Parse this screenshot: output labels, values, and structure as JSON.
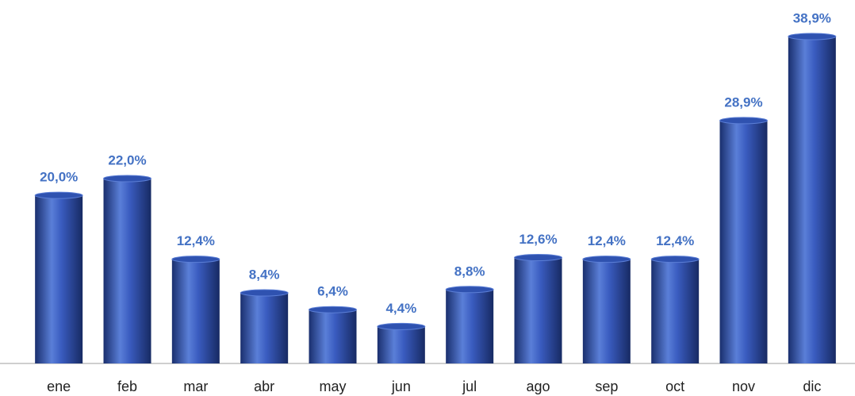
{
  "chart_data": {
    "type": "bar",
    "categories": [
      "ene",
      "feb",
      "mar",
      "abr",
      "may",
      "jun",
      "jul",
      "ago",
      "sep",
      "oct",
      "nov",
      "dic"
    ],
    "values": [
      20.0,
      22.0,
      12.4,
      8.4,
      6.4,
      4.4,
      8.8,
      12.6,
      12.4,
      12.4,
      28.9,
      38.9
    ],
    "value_labels": [
      "20,0%",
      "22,0%",
      "12,4%",
      "8,4%",
      "6,4%",
      "4,4%",
      "8,8%",
      "12,6%",
      "12,4%",
      "12,4%",
      "28,9%",
      "38,9%"
    ],
    "color": "#2f52b0",
    "label_color": "#4472c4"
  }
}
